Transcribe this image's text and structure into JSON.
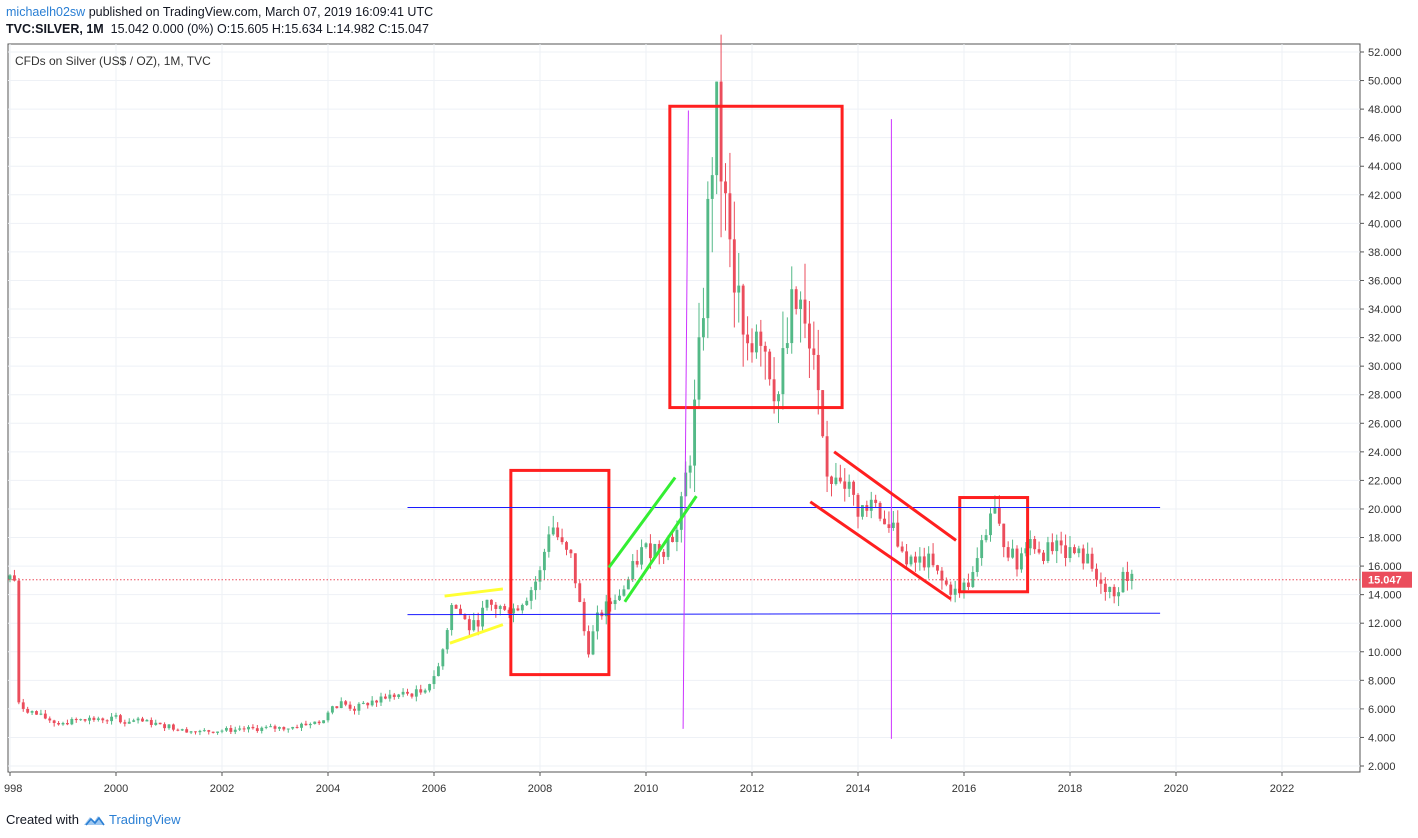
{
  "header": {
    "user": "michaelh02sw",
    "published": " published on TradingView.com, March 07, 2019 16:09:41 UTC",
    "symbol": "TVC:SILVER, 1M",
    "ohlc": "15.042  0.000 (0%)  O:15.605  H:15.634  L:14.982  C:15.047"
  },
  "footer": {
    "created_with": "Created with",
    "brand": "TradingView"
  },
  "colors": {
    "up": "#53b987",
    "down": "#eb4d5c",
    "box": "#ff1f1f",
    "hline": "#1a1aff",
    "vline": "#cc33ff",
    "yellow": "#ffff33",
    "green": "#33ee33",
    "price_line": "#eb4d5c",
    "grid": "#eef1f6"
  },
  "chart_data": {
    "type": "candlestick",
    "title": "CFDs on Silver (US$ / OZ), 1M, TVC",
    "x_ticks": [
      "998",
      "2000",
      "2002",
      "2004",
      "2006",
      "2008",
      "2010",
      "2012",
      "2014",
      "2016",
      "2018",
      "2020",
      "2022"
    ],
    "y_ticks": [
      "2.000",
      "4.000",
      "6.000",
      "8.000",
      "10.000",
      "12.000",
      "14.000",
      "16.000",
      "18.000",
      "20.000",
      "22.000",
      "24.000",
      "26.000",
      "28.000",
      "30.000",
      "32.000",
      "34.000",
      "36.000",
      "38.000",
      "40.000",
      "42.000",
      "44.000",
      "46.000",
      "48.000",
      "50.000",
      "52.000"
    ],
    "ylim": [
      1.2,
      52.6
    ],
    "last_price": "15.047",
    "price_path": [
      [
        1998.1,
        6.4
      ],
      [
        1998.5,
        5.6
      ],
      [
        1998.9,
        5.0
      ],
      [
        1999.5,
        5.3
      ],
      [
        2000.0,
        5.3
      ],
      [
        2000.7,
        5.0
      ],
      [
        2001.5,
        4.4
      ],
      [
        2002.0,
        4.5
      ],
      [
        2002.6,
        4.6
      ],
      [
        2003.3,
        4.7
      ],
      [
        2003.9,
        5.2
      ],
      [
        2004.2,
        6.5
      ],
      [
        2004.5,
        6.0
      ],
      [
        2005.0,
        6.8
      ],
      [
        2005.8,
        7.2
      ],
      [
        2006.1,
        9.0
      ],
      [
        2006.35,
        13.5
      ],
      [
        2006.7,
        11.5
      ],
      [
        2007.0,
        13.2
      ],
      [
        2007.5,
        13.0
      ],
      [
        2007.8,
        14.2
      ],
      [
        2008.0,
        15.5
      ],
      [
        2008.2,
        19.2
      ],
      [
        2008.45,
        17.0
      ],
      [
        2008.6,
        16.5
      ],
      [
        2008.9,
        10.0
      ],
      [
        2009.1,
        12.5
      ],
      [
        2009.6,
        14.5
      ],
      [
        2009.9,
        17.0
      ],
      [
        2010.3,
        17.5
      ],
      [
        2010.6,
        18.5
      ],
      [
        2010.9,
        26.0
      ],
      [
        2011.0,
        30.0
      ],
      [
        2011.3,
        48.0
      ],
      [
        2011.6,
        38.0
      ],
      [
        2011.9,
        30.0
      ],
      [
        2012.1,
        34.0
      ],
      [
        2012.5,
        28.0
      ],
      [
        2012.8,
        34.5
      ],
      [
        2013.0,
        32.0
      ],
      [
        2013.2,
        28.5
      ],
      [
        2013.4,
        22.0
      ],
      [
        2013.7,
        22.5
      ],
      [
        2014.0,
        20.0
      ],
      [
        2014.4,
        20.0
      ],
      [
        2014.7,
        18.5
      ],
      [
        2014.9,
        16.0
      ],
      [
        2015.3,
        16.5
      ],
      [
        2015.6,
        14.8
      ],
      [
        2015.9,
        14.0
      ],
      [
        2016.2,
        15.5
      ],
      [
        2016.5,
        19.7
      ],
      [
        2016.8,
        17.5
      ],
      [
        2017.0,
        16.0
      ],
      [
        2017.2,
        18.0
      ],
      [
        2017.5,
        17.0
      ],
      [
        2017.9,
        17.2
      ],
      [
        2018.3,
        16.5
      ],
      [
        2018.7,
        14.5
      ],
      [
        2018.9,
        14.2
      ],
      [
        2019.05,
        15.6
      ],
      [
        2019.17,
        15.05
      ]
    ]
  }
}
